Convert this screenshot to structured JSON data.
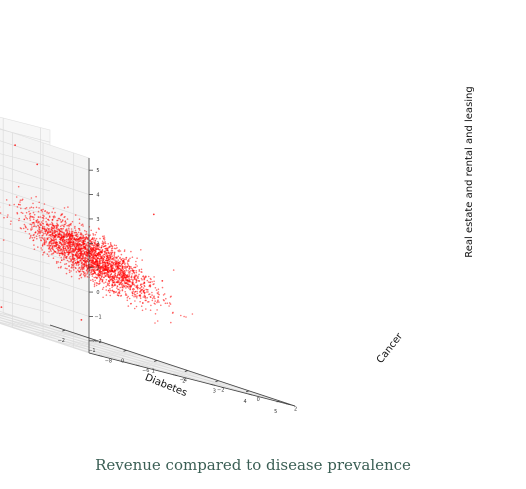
{
  "caption": "Revenue compared to disease prevalence",
  "chart_data": {
    "type": "scatter",
    "projection": "3d",
    "title": "",
    "xlabel": "Diabetes",
    "ylabel": "Cancer",
    "zlabel": "Real estate and rental and leasing",
    "xlim": [
      -2.5,
      5.5
    ],
    "ylim": [
      -8.5,
      2.5
    ],
    "zlim": [
      -2.5,
      5.5
    ],
    "x_ticks": [
      -2,
      -1,
      0,
      1,
      2,
      3,
      4,
      5
    ],
    "y_ticks": [
      -8,
      -6,
      -4,
      -2,
      0,
      2
    ],
    "z_ticks": [
      -2,
      -1,
      0,
      1,
      2,
      3,
      4,
      5
    ],
    "grid": true,
    "point_color": "#ff0000",
    "point_count": 2600,
    "cluster": {
      "x_mean": 0.2,
      "x_sd": 0.9,
      "y_mean": 0.3,
      "y_sd": 1.1,
      "z_mean": 1.0,
      "z_sd": 0.8
    },
    "outliers": [
      {
        "x": -1.5,
        "y": -1.0,
        "z": 4.6
      },
      {
        "x": 3.0,
        "y": -0.5,
        "z": 1.0
      },
      {
        "x": 4.2,
        "y": -3.5,
        "z": 0.0
      },
      {
        "x": 2.5,
        "y": -4.0,
        "z": -1.5
      },
      {
        "x": 0.5,
        "y": -5.0,
        "z": -2.0
      },
      {
        "x": -1.8,
        "y": -3.0,
        "z": -2.2
      },
      {
        "x": 1.5,
        "y": 1.5,
        "z": 3.5
      },
      {
        "x": -2.0,
        "y": 1.0,
        "z": 4.0
      }
    ]
  }
}
